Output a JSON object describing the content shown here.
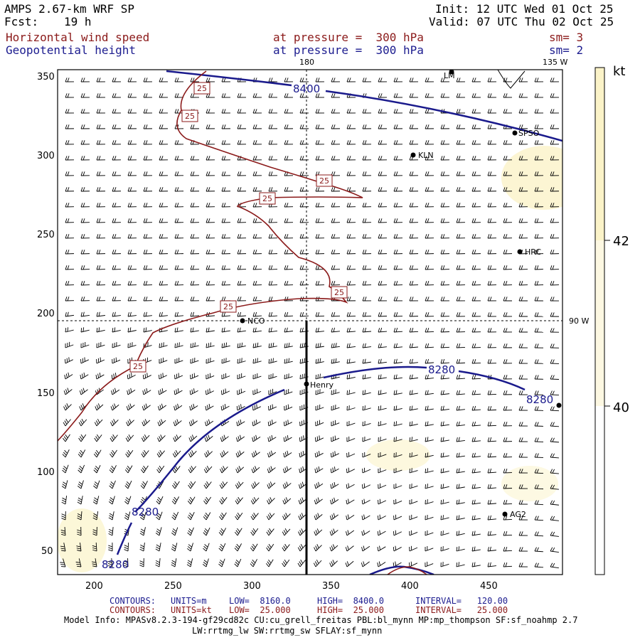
{
  "header": {
    "model": "AMPS 2.67-km WRF SP",
    "fcst_label": "Fcst:",
    "fcst_value": "19 h",
    "init": "Init: 12 UTC Wed 01 Oct 25",
    "valid": "Valid: 07 UTC Thu 02 Oct 25",
    "field1_name": "Horizontal wind speed",
    "field1_level": "at pressure =  300 hPa",
    "field1_sm": "sm= 3",
    "field2_name": "Geopotential height",
    "field2_level": "at pressure =  300 hPa",
    "field2_sm": "sm= 2"
  },
  "map": {
    "x_ticks": [
      "200",
      "250",
      "300",
      "350",
      "400",
      "450"
    ],
    "y_ticks": [
      "350",
      "300",
      "250",
      "200",
      "150",
      "100",
      "50"
    ],
    "lon_label_top": "180",
    "lon_label_top_right": "135 W",
    "lon_label_right": "90 W",
    "stations": [
      {
        "name": "LM",
        "code": "lm"
      },
      {
        "name": "SPSO",
        "code": "spso"
      },
      {
        "name": "KLN",
        "code": "kln"
      },
      {
        "name": "HRC",
        "code": "hrc"
      },
      {
        "name": "NCO",
        "code": "nco"
      },
      {
        "name": "Henry",
        "code": "henry"
      },
      {
        "name": "AG2",
        "code": "ag2"
      }
    ],
    "height_contours": [
      "8400",
      "8280",
      "8280",
      "8280",
      "8280"
    ],
    "speed_contours": [
      "25",
      "25",
      "25",
      "25",
      "25",
      "25",
      "25"
    ]
  },
  "colorbar": {
    "unit": "kt",
    "levels": [
      "42",
      "40"
    ]
  },
  "footer": {
    "line1_label": "CONTOURS:",
    "line1_units": "UNITS=m",
    "line1_low": "LOW=  8160.0",
    "line1_high": "HIGH=  8400.0",
    "line1_interval": "INTERVAL=   120.00",
    "line2_label": "CONTOURS:",
    "line2_units": "UNITS=kt",
    "line2_low": "LOW=  25.000",
    "line2_high": "HIGH=  25.000",
    "line2_interval": "INTERVAL=   25.000",
    "model_info": "Model Info: MPASv8.2.3-194-gf29cd82c CU:cu_grell_freitas PBL:bl_mynn MP:mp_thompson SF:sf_noahmp 2.7",
    "model_info2": "LW:rrtmg_lw SW:rrtmg_sw SFLAY:sf_mynn"
  },
  "colors": {
    "height_contour": "#1a1a8c",
    "speed_contour": "#8b1a1a",
    "shade": "#fbf3c8"
  }
}
